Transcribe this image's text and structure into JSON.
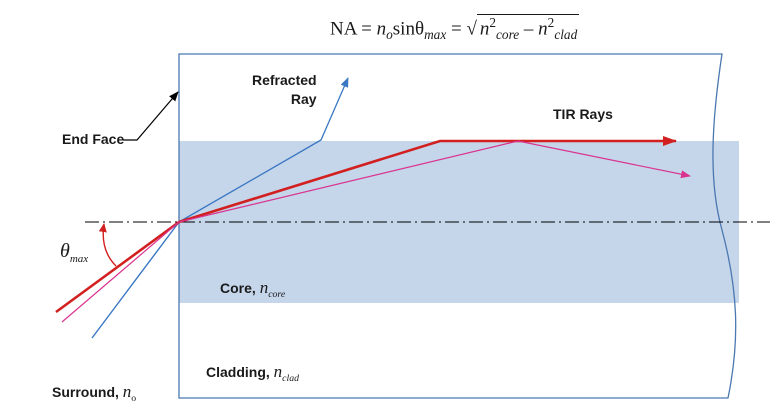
{
  "formula": {
    "na": "NA",
    "eq1": "=",
    "n": "n",
    "n_sub": "o",
    "sin_theta": "sinθ",
    "theta_sub": "max",
    "eq2": "=",
    "radicand_n1": "n",
    "sup1": "2",
    "sub1": "core",
    "minus": "–",
    "radicand_n2": "n",
    "sup2": "2",
    "sub2": "clad"
  },
  "labels": {
    "refracted_line1": "Refracted",
    "refracted_line2": "Ray",
    "tir_rays": "TIR Rays",
    "end_face": "End Face",
    "theta_symbol": "θ",
    "theta_sub": "max",
    "core_text": "Core, ",
    "core_n": "n",
    "core_sub": "core",
    "cladding_text": "Cladding, ",
    "cladding_n": "n",
    "cladding_sub": "clad",
    "surround_text": "Surround, ",
    "surround_n": "n",
    "surround_sub": "o"
  },
  "colors": {
    "core": "#c5d5ea",
    "refracted_ray": "#3a78c3",
    "tir_ray_main": "#d21f1f",
    "tir_ray_secondary": "#d9338f",
    "fiber_outline": "#4a78b0",
    "axis": "#000000"
  }
}
